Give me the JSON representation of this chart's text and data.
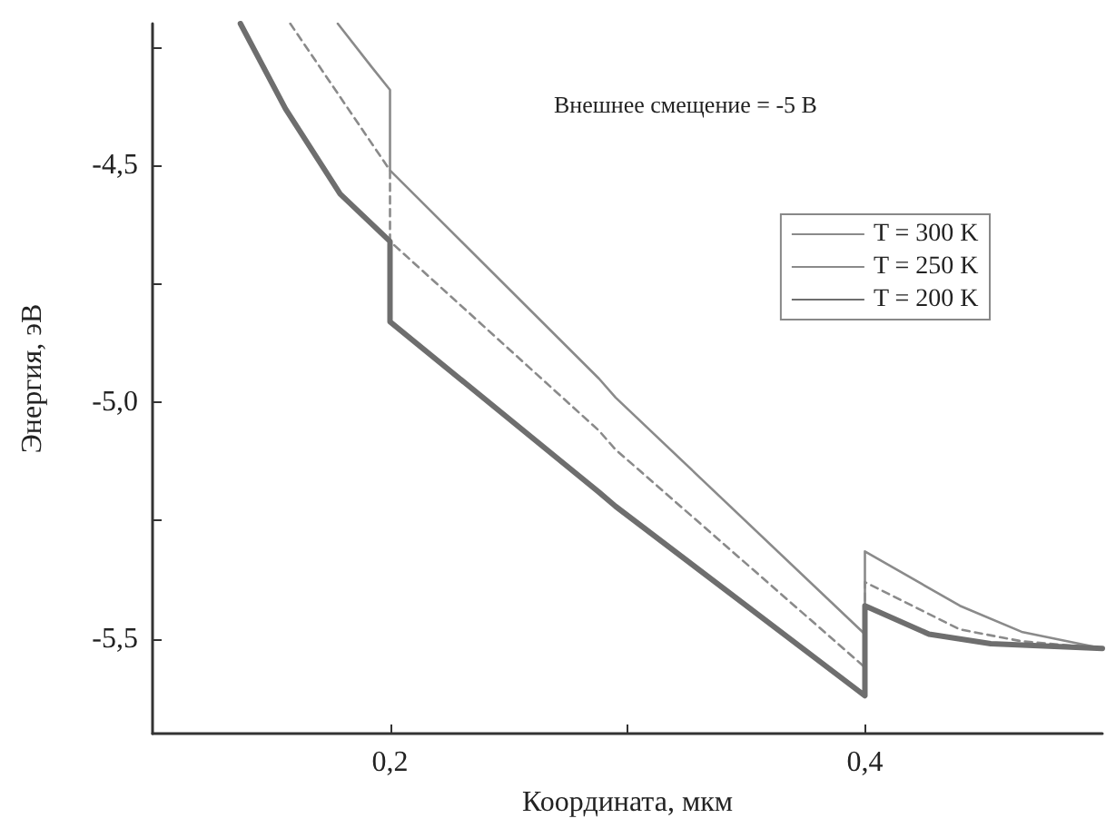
{
  "chart_data": {
    "type": "line",
    "xlabel": "Координата, мкм",
    "ylabel": "Энергия, эВ",
    "annotations": [
      "Внешнее смещение = -5 В"
    ],
    "xlim": [
      0.1,
      0.5
    ],
    "xticks": [
      {
        "value": 0.2,
        "label": "0,2"
      },
      {
        "value": 0.3,
        "label": null
      },
      {
        "value": 0.4,
        "label": "0,4"
      }
    ],
    "ylim": [
      -5.7,
      -4.2
    ],
    "yticks": [
      {
        "value": -4.25,
        "label": null
      },
      {
        "value": -4.5,
        "label": "-4,5"
      },
      {
        "value": -4.75,
        "label": null
      },
      {
        "value": -5.0,
        "label": "-5,0"
      },
      {
        "value": -5.25,
        "label": null
      },
      {
        "value": -5.5,
        "label": "-5,5"
      }
    ],
    "grid": false,
    "legend": "top right",
    "marker": "none",
    "series": [
      {
        "name": "T = 300 K",
        "color": "#8a8a8a",
        "line_style": "solid",
        "x": [
          0.178,
          0.192,
          0.2,
          0.2,
          0.288,
          0.295,
          0.4,
          0.4,
          0.44,
          0.466,
          0.5
        ],
        "values": [
          -4.2,
          -4.29,
          -4.34,
          -4.51,
          -4.95,
          -4.99,
          -5.49,
          -5.315,
          -5.43,
          -5.485,
          -5.52
        ]
      },
      {
        "name": "T = 250 K",
        "color": "#8a8a8a",
        "line_style": "dashed",
        "x": [
          0.158,
          0.2,
          0.2,
          0.288,
          0.295,
          0.4,
          0.4,
          0.44,
          0.466,
          0.5
        ],
        "values": [
          -4.2,
          -4.51,
          -4.66,
          -5.06,
          -5.1,
          -5.56,
          -5.38,
          -5.48,
          -5.505,
          -5.52
        ]
      },
      {
        "name": "T = 200 K",
        "color": "#6e6e6e",
        "line_style": "solid",
        "x": [
          0.137,
          0.156,
          0.179,
          0.2,
          0.2,
          0.288,
          0.295,
          0.4,
          0.4,
          0.427,
          0.453,
          0.5
        ],
        "values": [
          -4.2,
          -4.38,
          -4.56,
          -4.66,
          -4.83,
          -5.19,
          -5.22,
          -5.62,
          -5.43,
          -5.49,
          -5.51,
          -5.52
        ]
      }
    ]
  }
}
